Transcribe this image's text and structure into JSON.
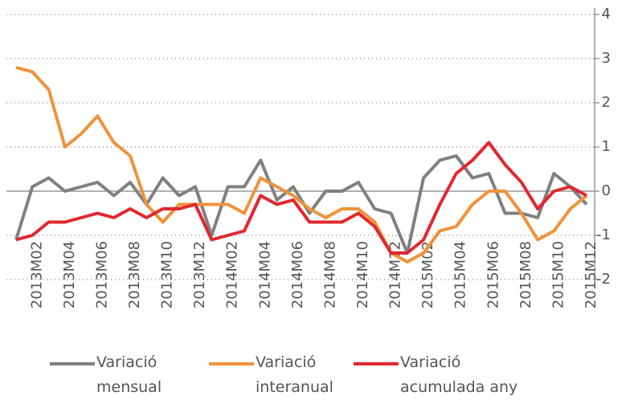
{
  "chart_data": {
    "type": "line",
    "categories": [
      null,
      "2013M02",
      null,
      "2013M04",
      null,
      "2013M06",
      null,
      "2013M08",
      null,
      "2013M10",
      null,
      "2013M12",
      null,
      "2014M02",
      null,
      "2014M04",
      null,
      "2014M06",
      null,
      "2014M08",
      null,
      "2014M10",
      null,
      "2014M12",
      null,
      "2015M02",
      null,
      "2015M04",
      null,
      "2015M06",
      null,
      "2015M08",
      null,
      "2015M10",
      null,
      "2015M12"
    ],
    "series": [
      {
        "name": "Variació mensual",
        "color": "#808080",
        "values": [
          -1.1,
          0.1,
          0.3,
          0.0,
          0.1,
          0.2,
          -0.1,
          0.2,
          -0.3,
          0.3,
          -0.1,
          0.1,
          -1.0,
          0.1,
          0.1,
          0.7,
          -0.2,
          0.1,
          -0.5,
          0.0,
          0.0,
          0.2,
          -0.4,
          -0.5,
          -1.4,
          0.3,
          0.7,
          0.8,
          0.3,
          0.4,
          -0.5,
          -0.5,
          -0.6,
          0.4,
          0.1,
          -0.3
        ]
      },
      {
        "name": "Variació interanual",
        "color": "#f0923a",
        "values": [
          2.8,
          2.7,
          2.3,
          1.0,
          1.3,
          1.7,
          1.1,
          0.8,
          -0.3,
          -0.7,
          -0.3,
          -0.3,
          -0.3,
          -0.3,
          -0.5,
          0.3,
          0.1,
          -0.1,
          -0.4,
          -0.6,
          -0.4,
          -0.4,
          -0.7,
          -1.4,
          -1.6,
          -1.4,
          -0.9,
          -0.8,
          -0.3,
          0.0,
          0.0,
          -0.5,
          -1.1,
          -0.9,
          -0.4,
          -0.1
        ]
      },
      {
        "name": "Variació acumulada any",
        "color": "#e0282e",
        "values": [
          -1.1,
          -1.0,
          -0.7,
          -0.7,
          -0.6,
          -0.5,
          -0.6,
          -0.4,
          -0.6,
          -0.4,
          -0.4,
          -0.3,
          -1.1,
          -1.0,
          -0.9,
          -0.1,
          -0.3,
          -0.2,
          -0.7,
          -0.7,
          -0.7,
          -0.5,
          -0.8,
          -1.4,
          -1.4,
          -1.1,
          -0.3,
          0.4,
          0.7,
          1.1,
          0.6,
          0.2,
          -0.4,
          0.0,
          0.1,
          -0.1
        ]
      }
    ],
    "ylim": [
      -2,
      4
    ],
    "yticks": [
      -2,
      -1,
      0,
      1,
      2,
      3,
      4
    ],
    "grid": true,
    "legend": "bottom"
  }
}
